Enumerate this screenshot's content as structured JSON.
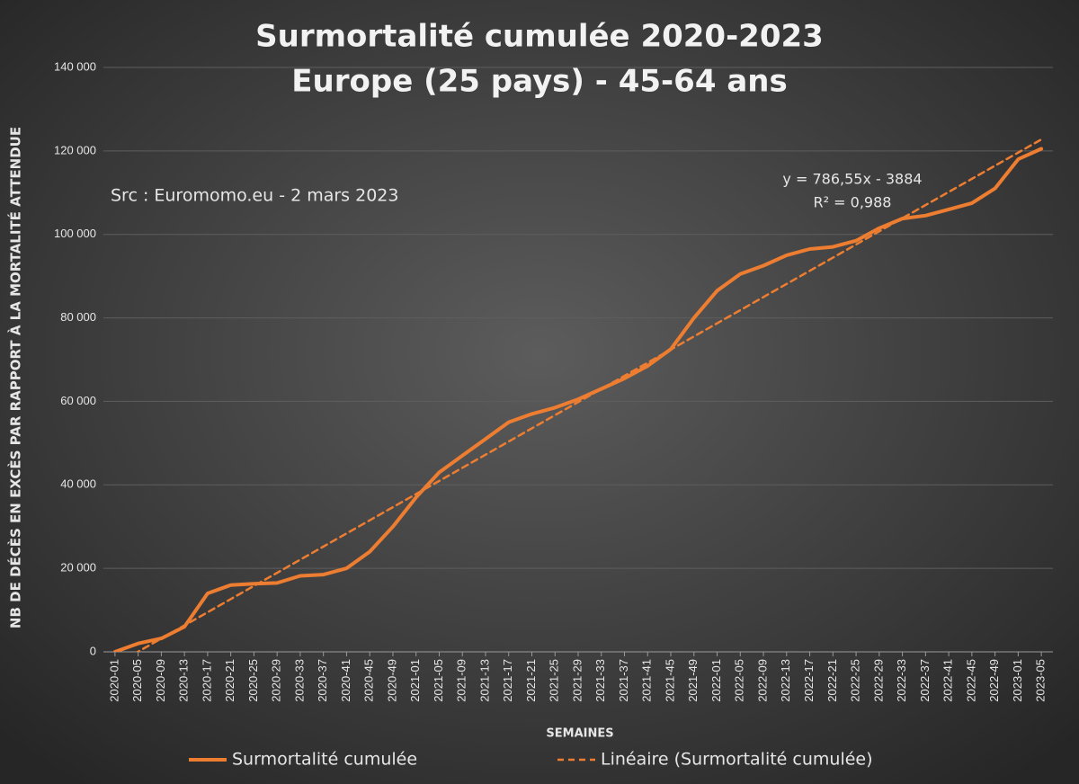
{
  "chart_data": {
    "type": "line",
    "title": "Surmortalité cumulée 2020-2023",
    "subtitle": "Europe (25 pays) - 45-64 ans",
    "x_label": "SEMAINES",
    "y_label": "NB DE DÉCÈS EN EXCÈS PAR RAPPORT À LA MORTALITÉ ATTENDUE",
    "annotations": [
      "Src : Euromomo.eu  - 2 mars 2023",
      "y = 786,55x - 3884",
      "R² = 0,988"
    ],
    "categories": [
      "2020-01",
      "2020-05",
      "2020-09",
      "2020-13",
      "2020-17",
      "2020-21",
      "2020-25",
      "2020-29",
      "2020-33",
      "2020-37",
      "2020-41",
      "2020-45",
      "2020-49",
      "2021-01",
      "2021-05",
      "2021-09",
      "2021-13",
      "2021-17",
      "2021-21",
      "2021-25",
      "2021-29",
      "2021-33",
      "2021-37",
      "2021-41",
      "2021-45",
      "2021-49",
      "2022-01",
      "2022-05",
      "2022-09",
      "2022-13",
      "2022-17",
      "2022-21",
      "2022-25",
      "2022-29",
      "2022-33",
      "2022-37",
      "2022-41",
      "2022-45",
      "2022-49",
      "2023-01",
      "2023-05"
    ],
    "series": [
      {
        "name": "Surmortalité cumulée",
        "color": "#ed7d31",
        "dashed": false,
        "values": [
          0,
          2000,
          3200,
          6000,
          14000,
          16000,
          16300,
          16500,
          18200,
          18500,
          20000,
          24000,
          30000,
          37000,
          43000,
          47000,
          51000,
          55000,
          57000,
          58500,
          60500,
          63000,
          65500,
          68500,
          72500,
          80000,
          86500,
          90500,
          92500,
          95000,
          96500,
          97000,
          98500,
          101500,
          103800,
          104500,
          106000,
          107500,
          111000,
          118000,
          120500
        ]
      },
      {
        "name": "Linéaire (Surmortalité cumulée)",
        "color": "#ed7d31",
        "dashed": true,
        "values": [
          -3097,
          49,
          3195,
          6341,
          9487,
          12634,
          15780,
          18926,
          22072,
          25219,
          28365,
          31511,
          34657,
          37803,
          40950,
          44096,
          47242,
          50388,
          53535,
          56681,
          59827,
          62973,
          66119,
          69266,
          72412,
          75558,
          78704,
          81850,
          84997,
          88143,
          91289,
          94435,
          97582,
          100728,
          103874,
          107020,
          110166,
          113313,
          116459,
          119605,
          122751
        ]
      }
    ],
    "ylim": [
      0,
      140000
    ],
    "yticks": [
      0,
      {
        "value": 20000,
        "label": "20 000"
      },
      {
        "value": 40000,
        "label": "40 000"
      },
      {
        "value": 60000,
        "label": "60 000"
      },
      {
        "value": 80000,
        "label": "80 000"
      },
      {
        "value": 100000,
        "label": "100 000"
      },
      {
        "value": 120000,
        "label": "120 000"
      },
      {
        "value": 140000,
        "label": "140 000"
      }
    ],
    "grid": true,
    "legend": "bottom"
  }
}
